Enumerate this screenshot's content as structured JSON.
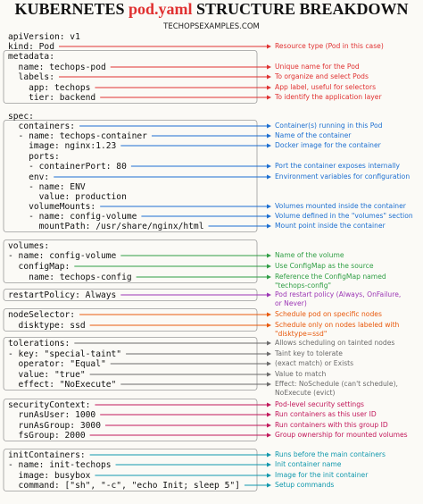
{
  "header": {
    "title_start": "KUBERNETES",
    "title_highlight": "pod.yaml",
    "title_end": "STRUCTURE BREAKDOWN",
    "subtitle": "TECHOPSEXAMPLES.COM"
  },
  "lines": [
    {
      "code": "apiVersion: v1"
    },
    {
      "code": "kind: Pod",
      "note": [
        "Resource type (Pod in this case)"
      ]
    },
    {
      "code": "metadata:"
    },
    {
      "code": "  name: techops-pod",
      "note": [
        "Unique name for the Pod"
      ]
    },
    {
      "code": "  labels:",
      "note": [
        "To organize and select Pods"
      ]
    },
    {
      "code": "    app: techops",
      "note": [
        "App label, useful for selectors"
      ]
    },
    {
      "code": "    tier: backend",
      "note": [
        "To identify the application layer"
      ]
    },
    {
      "code": "spec:"
    },
    {
      "code": "  containers:",
      "note": [
        "Container(s) running in this Pod"
      ]
    },
    {
      "code": "  - name: techops-container",
      "note": [
        "Name of the container"
      ]
    },
    {
      "code": "    image: nginx:1.23",
      "note": [
        "Docker image for the container"
      ]
    },
    {
      "code": "    ports:"
    },
    {
      "code": "    - containerPort: 80",
      "note": [
        "Port the container exposes internally"
      ]
    },
    {
      "code": "    env:",
      "note": [
        "Environment variables for configuration"
      ]
    },
    {
      "code": "    - name: ENV"
    },
    {
      "code": "      value: production"
    },
    {
      "code": "    volumeMounts:",
      "note": [
        "Volumes mounted inside the container"
      ]
    },
    {
      "code": "    - name: config-volume",
      "note": [
        "Volume defined in the \"volumes\" section"
      ]
    },
    {
      "code": "      mountPath: /usr/share/nginx/html",
      "note": [
        "Mount point inside the container"
      ]
    },
    {
      "code": "volumes:"
    },
    {
      "code": "- name: config-volume",
      "note": [
        "Name of the volume"
      ]
    },
    {
      "code": "  configMap:",
      "note": [
        "Use ConfigMap as the source"
      ]
    },
    {
      "code": "    name: techops-config",
      "note": [
        "Reference the ConfigMap named",
        "\"techops-config\""
      ]
    },
    {
      "code": "restartPolicy: Always",
      "note": [
        "Pod restart policy (Always, OnFailure,",
        "or Never)"
      ]
    },
    {
      "code": "nodeSelector:",
      "note": [
        "Schedule pod on specific nodes"
      ]
    },
    {
      "code": "  disktype: ssd",
      "note": [
        "Schedule only on nodes labeled with",
        "\"disktype=ssd\""
      ]
    },
    {
      "code": "tolerations:",
      "note": [
        "Allows scheduling on tainted nodes"
      ]
    },
    {
      "code": "- key: \"special-taint\"",
      "note": [
        "Taint key to tolerate"
      ]
    },
    {
      "code": "  operator: \"Equal\"",
      "note": [
        "(exact match) or Exists"
      ]
    },
    {
      "code": "  value: \"true\"",
      "note": [
        "Value to match"
      ]
    },
    {
      "code": "  effect: \"NoExecute\"",
      "note": [
        "Effect: NoSchedule (can't schedule),",
        "NoExecute (evict)"
      ]
    },
    {
      "code": "securityContext:",
      "note": [
        "Pod-level security settings"
      ]
    },
    {
      "code": "  runAsUser: 1000",
      "note": [
        "Run containers as this user ID"
      ]
    },
    {
      "code": "  runAsGroup: 3000",
      "note": [
        "Run containers with this group ID"
      ]
    },
    {
      "code": "  fsGroup: 2000",
      "note": [
        "Group ownership for mounted volumes"
      ]
    },
    {
      "code": "initContainers:",
      "note": [
        "Runs before the main containers"
      ]
    },
    {
      "code": "- name: init-techops",
      "note": [
        "Init container name"
      ]
    },
    {
      "code": "  image: busybox",
      "note": [
        "Image for the init container"
      ]
    },
    {
      "code": "  command: [\"sh\", \"-c\", \"echo Init; sleep 5\"]",
      "note": [
        "Setup commands"
      ]
    }
  ]
}
